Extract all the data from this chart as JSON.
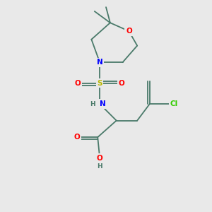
{
  "background_color": "#e9e9e9",
  "bond_color": "#4a7a6a",
  "bond_width": 1.3,
  "atom_colors": {
    "O": "#ff0000",
    "N": "#0000ff",
    "S": "#b8b800",
    "Cl": "#33cc00",
    "C": "#4a7a6a",
    "H": "#4a7a6a"
  },
  "font_size": 7.5,
  "figsize": [
    3.0,
    3.0
  ],
  "dpi": 100
}
